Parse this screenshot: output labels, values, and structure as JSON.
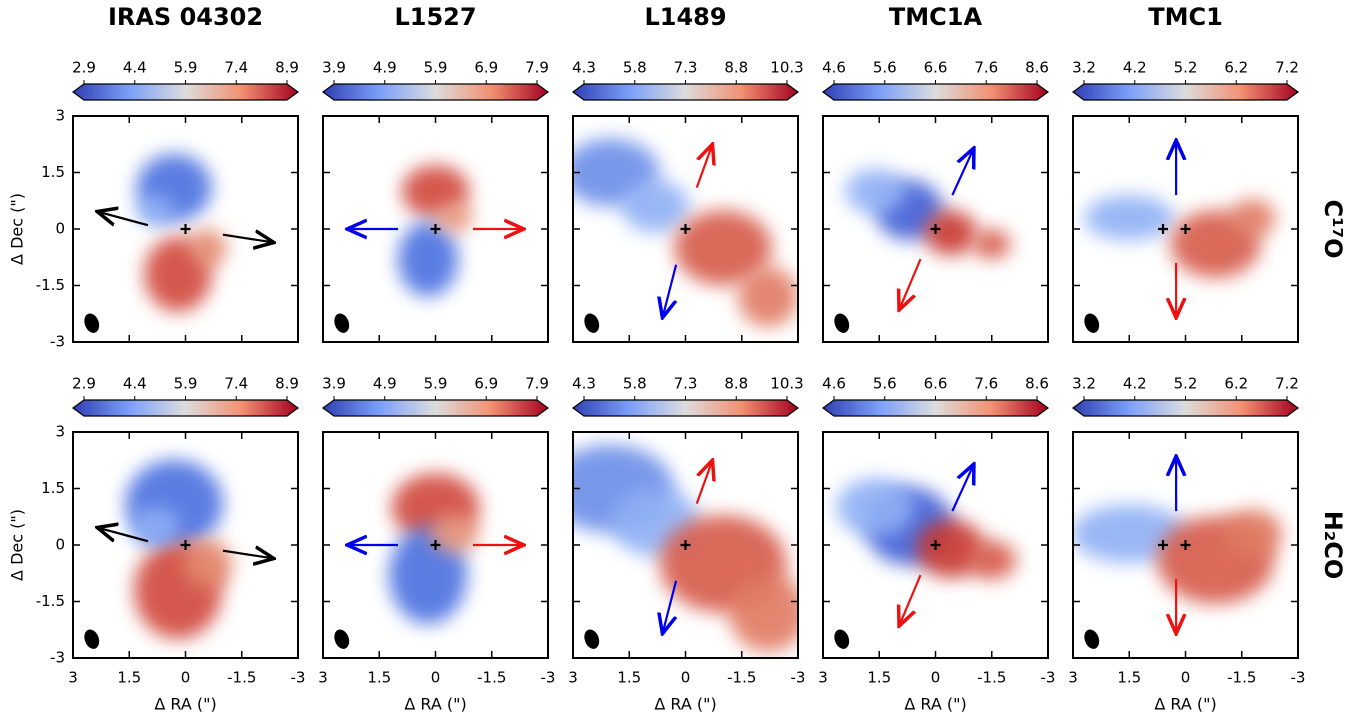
{
  "chart_data": {
    "type": "map",
    "xlabel": "Δ RA (\")",
    "ylabel": "Δ Dec (\")",
    "xlim": [
      3,
      -3
    ],
    "ylim": [
      -3,
      3
    ],
    "xticks": [
      3,
      1.5,
      0,
      -1.5,
      -3
    ],
    "yticks": [
      -3,
      -1.5,
      0,
      1.5,
      3
    ],
    "columns": [
      {
        "title": "IRAS 04302",
        "cticks": [
          2.9,
          4.4,
          5.9,
          7.4,
          8.9
        ]
      },
      {
        "title": "L1527",
        "cticks": [
          3.9,
          4.9,
          5.9,
          6.9,
          7.9
        ]
      },
      {
        "title": "L1489",
        "cticks": [
          4.3,
          5.8,
          7.3,
          8.8,
          10.3
        ]
      },
      {
        "title": "TMC1A",
        "cticks": [
          4.6,
          5.6,
          6.6,
          7.6,
          8.6
        ]
      },
      {
        "title": "TMC1",
        "cticks": [
          3.2,
          4.2,
          5.2,
          6.2,
          7.2
        ]
      }
    ],
    "rows": [
      {
        "label": "C¹⁷O"
      },
      {
        "label": "H₂CO"
      }
    ]
  }
}
